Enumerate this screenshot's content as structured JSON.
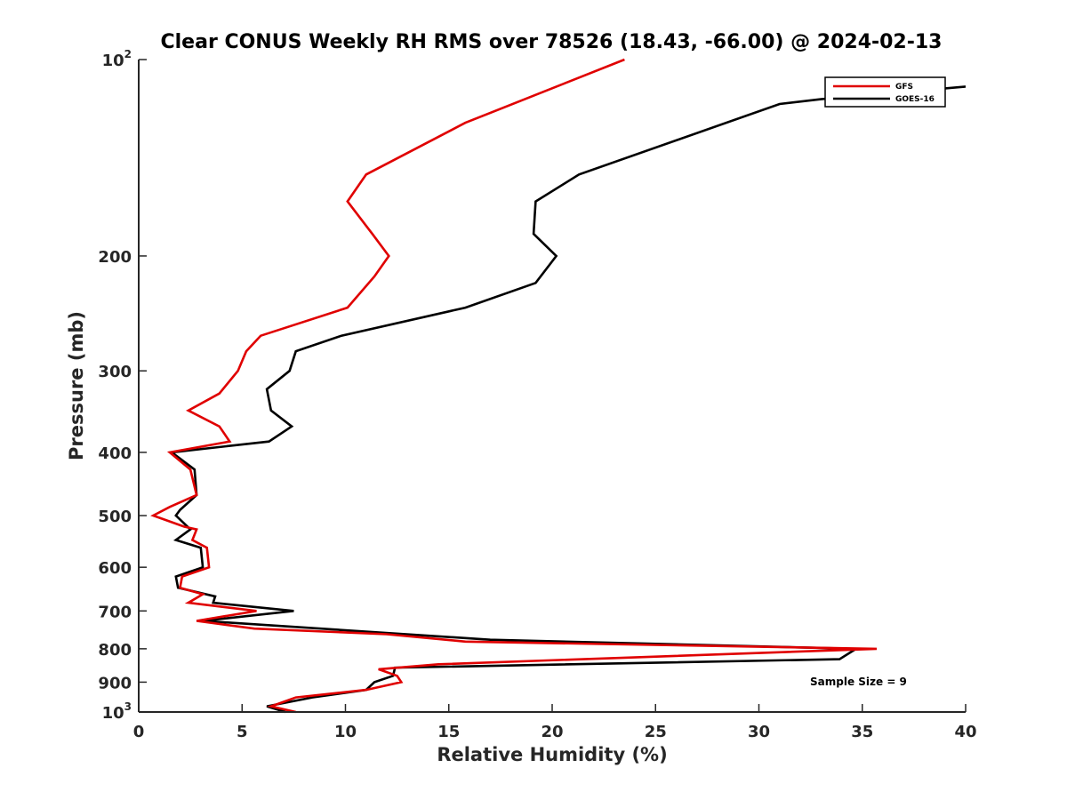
{
  "chart_data": {
    "type": "line",
    "title": "Clear CONUS Weekly RH RMS over 78526 (18.43, -66.00) @ 2024-02-13",
    "xlabel": "Relative Humidity (%)",
    "ylabel": "Pressure (mb)",
    "xlim": [
      0,
      40
    ],
    "ylim": [
      100,
      1000
    ],
    "y_scale": "log",
    "y_reversed": true,
    "grid": false,
    "legend_position": "top-right",
    "x_ticks": [
      0,
      5,
      10,
      15,
      20,
      25,
      30,
      35,
      40
    ],
    "x_tick_labels": [
      "0",
      "5",
      "10",
      "15",
      "20",
      "25",
      "30",
      "35",
      "40"
    ],
    "y_ticks": [
      {
        "value": 100,
        "base": "10",
        "exp": "2"
      },
      {
        "value": 200,
        "base": "200",
        "exp": ""
      },
      {
        "value": 300,
        "base": "300",
        "exp": ""
      },
      {
        "value": 400,
        "base": "400",
        "exp": ""
      },
      {
        "value": 500,
        "base": "500",
        "exp": ""
      },
      {
        "value": 600,
        "base": "600",
        "exp": ""
      },
      {
        "value": 700,
        "base": "700",
        "exp": ""
      },
      {
        "value": 800,
        "base": "800",
        "exp": ""
      },
      {
        "value": 900,
        "base": "900",
        "exp": ""
      },
      {
        "value": 1000,
        "base": "10",
        "exp": "3"
      }
    ],
    "annotation": "Sample Size = 9",
    "series": [
      {
        "name": "GFS",
        "color": "#e00000",
        "points": [
          [
            23.5,
            100
          ],
          [
            15.8,
            125
          ],
          [
            11.0,
            150
          ],
          [
            10.1,
            165
          ],
          [
            11.3,
            185
          ],
          [
            12.1,
            200
          ],
          [
            11.4,
            215
          ],
          [
            10.1,
            240
          ],
          [
            5.9,
            265
          ],
          [
            5.2,
            280
          ],
          [
            4.8,
            300
          ],
          [
            3.9,
            325
          ],
          [
            2.4,
            345
          ],
          [
            3.9,
            365
          ],
          [
            4.4,
            385
          ],
          [
            1.5,
            400
          ],
          [
            2.5,
            425
          ],
          [
            2.8,
            465
          ],
          [
            1.5,
            485
          ],
          [
            0.7,
            500
          ],
          [
            2.2,
            520
          ],
          [
            2.8,
            525
          ],
          [
            2.6,
            545
          ],
          [
            3.3,
            560
          ],
          [
            3.4,
            600
          ],
          [
            2.1,
            620
          ],
          [
            2.0,
            645
          ],
          [
            3.1,
            660
          ],
          [
            2.4,
            680
          ],
          [
            5.7,
            700
          ],
          [
            2.8,
            725
          ],
          [
            5.6,
            745
          ],
          [
            12.0,
            760
          ],
          [
            15.8,
            780
          ],
          [
            35.7,
            800
          ],
          [
            14.5,
            845
          ],
          [
            11.6,
            860
          ],
          [
            12.5,
            880
          ],
          [
            12.7,
            900
          ],
          [
            11.0,
            925
          ],
          [
            7.6,
            950
          ],
          [
            6.4,
            980
          ],
          [
            7.6,
            1000
          ]
        ]
      },
      {
        "name": "GOES-16",
        "color": "#000000",
        "points": [
          [
            40.0,
            110
          ],
          [
            33.0,
            115
          ],
          [
            31.0,
            117
          ],
          [
            21.3,
            150
          ],
          [
            19.2,
            165
          ],
          [
            19.1,
            185
          ],
          [
            20.2,
            200
          ],
          [
            19.2,
            220
          ],
          [
            15.8,
            240
          ],
          [
            9.8,
            265
          ],
          [
            7.6,
            280
          ],
          [
            7.3,
            300
          ],
          [
            6.2,
            320
          ],
          [
            6.4,
            345
          ],
          [
            7.4,
            365
          ],
          [
            6.3,
            385
          ],
          [
            1.6,
            400
          ],
          [
            2.7,
            425
          ],
          [
            2.8,
            465
          ],
          [
            2.0,
            490
          ],
          [
            1.8,
            500
          ],
          [
            2.5,
            525
          ],
          [
            1.8,
            545
          ],
          [
            3.0,
            560
          ],
          [
            3.1,
            600
          ],
          [
            1.8,
            620
          ],
          [
            1.9,
            645
          ],
          [
            3.7,
            665
          ],
          [
            3.6,
            680
          ],
          [
            7.5,
            700
          ],
          [
            3.1,
            725
          ],
          [
            17.0,
            775
          ],
          [
            34.7,
            800
          ],
          [
            33.9,
            830
          ],
          [
            12.4,
            855
          ],
          [
            12.3,
            880
          ],
          [
            11.4,
            900
          ],
          [
            11.0,
            925
          ],
          [
            8.4,
            950
          ],
          [
            6.2,
            980
          ],
          [
            7.1,
            1000
          ]
        ]
      }
    ]
  }
}
